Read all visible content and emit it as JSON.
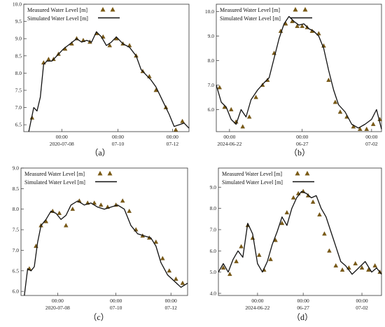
{
  "colors": {
    "simulated": "#111111",
    "measured": "#7a5a14"
  },
  "chart_data": [
    {
      "type": "line",
      "caption": "（a）",
      "legend": [
        "Measured Water Level [m]",
        "Simulated Water Level [m]"
      ],
      "ylim": [
        6.3,
        10.0
      ],
      "yticks": [
        "6.5",
        "7.0",
        "7.5",
        "8.0",
        "8.5",
        "9.0",
        "9.5",
        "10.0"
      ],
      "xticks": [
        [
          "00:00",
          "2020-07-08"
        ],
        [
          "00:00",
          "07-10"
        ],
        [
          "00:00",
          "07-12"
        ]
      ],
      "series": [
        {
          "name": "Measured Water Level [m]",
          "kind": "markers",
          "x": [
            0.05,
            0.12,
            0.15,
            0.18,
            0.21,
            0.25,
            0.29,
            0.32,
            0.36,
            0.4,
            0.44,
            0.48,
            0.52,
            0.56,
            0.6,
            0.64,
            0.68,
            0.72,
            0.76,
            0.8,
            0.86,
            0.92,
            0.96
          ],
          "y": [
            6.7,
            8.3,
            8.4,
            8.4,
            8.55,
            8.7,
            8.85,
            9.0,
            8.95,
            8.9,
            9.15,
            9.05,
            8.8,
            9.0,
            8.85,
            8.8,
            8.5,
            8.05,
            7.9,
            7.5,
            7.0,
            6.35,
            6.6
          ]
        },
        {
          "name": "Simulated Water Level [m]",
          "kind": "line",
          "x": [
            0.03,
            0.06,
            0.08,
            0.1,
            0.12,
            0.14,
            0.17,
            0.2,
            0.24,
            0.28,
            0.32,
            0.35,
            0.38,
            0.41,
            0.44,
            0.47,
            0.5,
            0.53,
            0.56,
            0.6,
            0.64,
            0.68,
            0.71,
            0.74,
            0.77,
            0.8,
            0.84,
            0.88,
            0.91,
            0.94,
            0.97,
            1.0
          ],
          "y": [
            6.3,
            7.0,
            6.9,
            7.3,
            8.25,
            8.35,
            8.35,
            8.5,
            8.7,
            8.85,
            9.0,
            8.9,
            8.95,
            8.9,
            9.2,
            9.05,
            8.8,
            8.9,
            9.05,
            8.85,
            8.75,
            8.5,
            8.1,
            7.95,
            7.8,
            7.6,
            7.2,
            6.8,
            6.45,
            6.5,
            6.55,
            6.4
          ]
        }
      ]
    },
    {
      "type": "line",
      "caption": "（b）",
      "legend": [
        "Measured Water Level [m]",
        "Simulated Water Level [m]"
      ],
      "ylim": [
        5.1,
        10.3
      ],
      "yticks": [
        "6.0",
        "7.0",
        "8.0",
        "9.0",
        "10.0"
      ],
      "xticks": [
        [
          "00:00",
          "2024-06-22"
        ],
        [
          "00:00",
          "06-27"
        ],
        [
          "00:00",
          "07-02"
        ]
      ],
      "series": [
        {
          "name": "Measured Water Level [m]",
          "kind": "markers",
          "x": [
            0.02,
            0.05,
            0.09,
            0.12,
            0.16,
            0.2,
            0.24,
            0.28,
            0.31,
            0.35,
            0.39,
            0.42,
            0.46,
            0.49,
            0.52,
            0.55,
            0.58,
            0.62,
            0.65,
            0.68,
            0.72,
            0.75,
            0.79,
            0.83,
            0.87,
            0.91,
            0.95,
            0.99
          ],
          "y": [
            6.9,
            6.1,
            6.0,
            5.5,
            5.3,
            5.7,
            6.5,
            7.0,
            7.2,
            8.3,
            9.2,
            9.5,
            9.6,
            9.4,
            9.4,
            9.35,
            9.2,
            9.1,
            8.6,
            7.2,
            6.3,
            5.9,
            5.7,
            5.3,
            5.2,
            5.2,
            5.4,
            5.6
          ]
        },
        {
          "name": "Simulated Water Level [m]",
          "kind": "line",
          "x": [
            0.0,
            0.03,
            0.06,
            0.09,
            0.12,
            0.15,
            0.18,
            0.21,
            0.25,
            0.29,
            0.32,
            0.35,
            0.38,
            0.41,
            0.44,
            0.47,
            0.5,
            0.53,
            0.56,
            0.59,
            0.62,
            0.65,
            0.68,
            0.71,
            0.74,
            0.78,
            0.82,
            0.86,
            0.9,
            0.94,
            0.97,
            1.0
          ],
          "y": [
            7.0,
            6.3,
            6.1,
            5.6,
            5.4,
            6.0,
            5.7,
            6.4,
            6.8,
            7.1,
            7.3,
            8.1,
            8.9,
            9.5,
            9.8,
            9.6,
            9.45,
            9.5,
            9.3,
            9.2,
            9.0,
            8.5,
            7.6,
            6.8,
            6.2,
            5.9,
            5.4,
            5.25,
            5.4,
            5.6,
            6.0,
            5.2
          ]
        }
      ]
    },
    {
      "type": "line",
      "caption": "（c）",
      "legend": [
        "Measured Water Level [m]",
        "Simulated Water Level [m]"
      ],
      "ylim": [
        5.9,
        9.0
      ],
      "yticks": [
        "6.0",
        "6.5",
        "7.0",
        "7.5",
        "8.0",
        "8.5",
        "9.0"
      ],
      "xticks": [
        [
          "00:00",
          "2020-07-08"
        ],
        [
          "00:00",
          "07-10"
        ],
        [
          "00:00",
          "07-12"
        ]
      ],
      "series": [
        {
          "name": "Measured Water Level [m]",
          "kind": "markers",
          "x": [
            0.05,
            0.09,
            0.12,
            0.15,
            0.19,
            0.23,
            0.27,
            0.31,
            0.35,
            0.4,
            0.44,
            0.48,
            0.52,
            0.57,
            0.61,
            0.65,
            0.69,
            0.73,
            0.77,
            0.81,
            0.85,
            0.89,
            0.93,
            0.97
          ],
          "y": [
            6.55,
            7.1,
            7.6,
            7.7,
            7.95,
            7.9,
            7.6,
            8.0,
            8.2,
            8.15,
            8.15,
            8.1,
            8.05,
            8.1,
            8.2,
            7.95,
            7.5,
            7.35,
            7.3,
            7.2,
            6.8,
            6.5,
            6.3,
            6.2
          ]
        },
        {
          "name": "Simulated Water Level [m]",
          "kind": "line",
          "x": [
            0.02,
            0.04,
            0.06,
            0.08,
            0.1,
            0.12,
            0.15,
            0.18,
            0.21,
            0.24,
            0.27,
            0.3,
            0.34,
            0.38,
            0.42,
            0.46,
            0.5,
            0.54,
            0.58,
            0.62,
            0.66,
            0.7,
            0.74,
            0.78,
            0.81,
            0.84,
            0.88,
            0.92,
            0.96,
            1.0
          ],
          "y": [
            5.9,
            6.55,
            6.5,
            6.6,
            7.2,
            7.6,
            7.75,
            7.95,
            7.9,
            7.75,
            7.85,
            8.1,
            8.2,
            8.1,
            8.15,
            8.05,
            8.0,
            8.05,
            8.1,
            8.0,
            7.6,
            7.4,
            7.35,
            7.3,
            7.1,
            6.7,
            6.4,
            6.25,
            6.1,
            6.2
          ]
        }
      ]
    },
    {
      "type": "line",
      "caption": "（d）",
      "legend": [
        "Measured Water Level [m]",
        "Simulated Water Level [m]"
      ],
      "ylim": [
        3.9,
        9.9
      ],
      "yticks": [
        "4.0",
        "5.0",
        "6.0",
        "7.0",
        "8.0",
        "9.0"
      ],
      "xticks": [
        [
          "00:00",
          "2024-06-22"
        ],
        [
          "00:00",
          "06-27"
        ],
        [
          "00:00",
          "07-02"
        ]
      ],
      "series": [
        {
          "name": "Measured Water Level [m]",
          "kind": "markers",
          "x": [
            0.03,
            0.07,
            0.11,
            0.14,
            0.18,
            0.21,
            0.25,
            0.28,
            0.32,
            0.35,
            0.39,
            0.42,
            0.46,
            0.49,
            0.52,
            0.55,
            0.58,
            0.62,
            0.65,
            0.68,
            0.72,
            0.76,
            0.8,
            0.84,
            0.88,
            0.92,
            0.96,
            0.99
          ],
          "y": [
            5.2,
            4.9,
            5.5,
            6.2,
            7.2,
            6.6,
            5.8,
            5.1,
            5.6,
            6.5,
            7.3,
            7.8,
            8.5,
            8.7,
            8.8,
            8.6,
            8.3,
            7.7,
            6.8,
            6.0,
            5.3,
            5.1,
            5.2,
            5.4,
            5.2,
            5.1,
            5.3,
            5.0
          ]
        },
        {
          "name": "Simulated Water Level [m]",
          "kind": "line",
          "x": [
            0.0,
            0.03,
            0.06,
            0.09,
            0.12,
            0.15,
            0.18,
            0.21,
            0.24,
            0.27,
            0.3,
            0.33,
            0.36,
            0.39,
            0.42,
            0.45,
            0.48,
            0.51,
            0.54,
            0.57,
            0.6,
            0.63,
            0.66,
            0.69,
            0.72,
            0.75,
            0.78,
            0.82,
            0.86,
            0.9,
            0.94,
            0.97,
            1.0
          ],
          "y": [
            5.0,
            5.4,
            5.0,
            5.6,
            6.0,
            5.7,
            7.3,
            6.8,
            5.4,
            5.0,
            5.5,
            6.3,
            6.9,
            7.6,
            7.2,
            8.0,
            8.5,
            8.8,
            8.7,
            8.5,
            8.6,
            8.0,
            7.6,
            6.9,
            6.2,
            5.5,
            5.3,
            4.9,
            5.2,
            5.5,
            5.0,
            5.2,
            4.9
          ]
        }
      ]
    }
  ]
}
